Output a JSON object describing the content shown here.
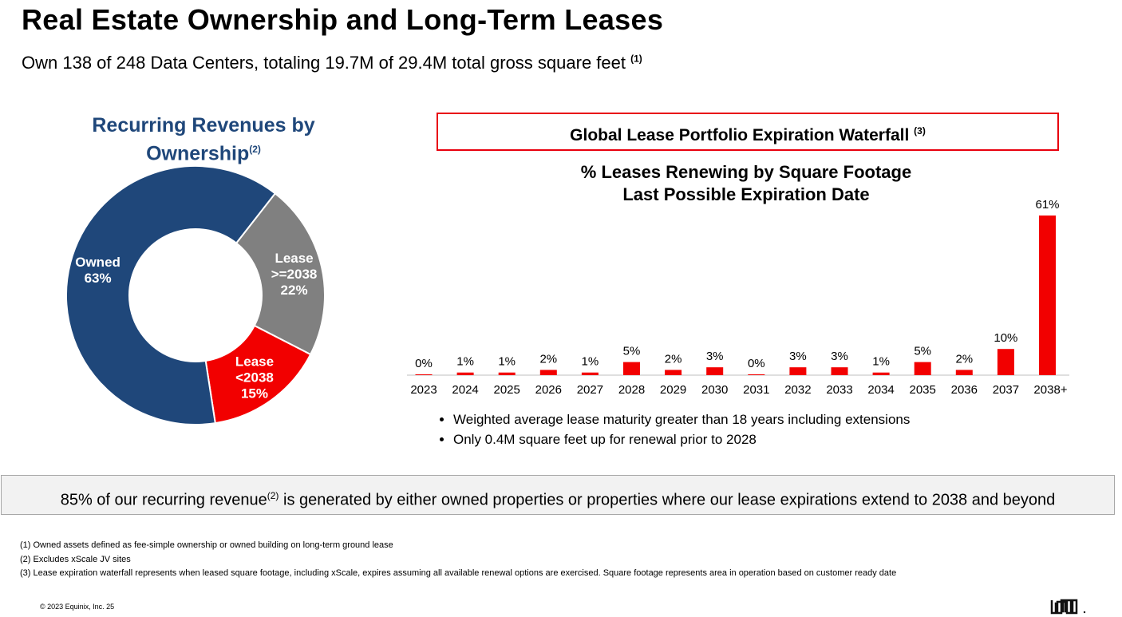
{
  "title": "Real Estate Ownership and Long-Term Leases",
  "subtitle": "Own 138 of 248 Data Centers, totaling 19.7M of 29.4M total gross square feet",
  "subtitle_note": "(1)",
  "chart_data": [
    {
      "type": "pie",
      "title": "Recurring Revenues by Ownership",
      "title_note": "(2)",
      "slices": [
        {
          "label": "Lease >=2038",
          "lines": [
            "Lease",
            ">=2038",
            "22%"
          ],
          "value": 22,
          "color": "#808080"
        },
        {
          "label": "Lease <2038",
          "lines": [
            "Lease",
            "<2038",
            "15%"
          ],
          "value": 15,
          "color": "#f20000"
        },
        {
          "label": "Owned",
          "lines": [
            "Owned",
            "63%"
          ],
          "value": 63,
          "color": "#1f477a"
        }
      ]
    },
    {
      "type": "bar",
      "header": "Global Lease Portfolio Expiration Waterfall",
      "header_note": "(3)",
      "title": [
        "% Leases Renewing by Square Footage",
        "Last Possible Expiration Date"
      ],
      "categories": [
        "2023",
        "2024",
        "2025",
        "2026",
        "2027",
        "2028",
        "2029",
        "2030",
        "2031",
        "2032",
        "2033",
        "2034",
        "2035",
        "2036",
        "2037",
        "2038+"
      ],
      "values": [
        0,
        1,
        1,
        2,
        1,
        5,
        2,
        3,
        0,
        3,
        3,
        1,
        5,
        2,
        10,
        61
      ],
      "unit": "%",
      "color": "#f20000",
      "ylim": [
        0,
        61
      ]
    }
  ],
  "bullets": [
    "Weighted average lease maturity greater than 18 years including extensions",
    "Only 0.4M square feet up for renewal prior to 2028"
  ],
  "banner": {
    "pre": "85% of our recurring revenue",
    "note": "(2)",
    "post": " is generated by either owned properties or properties where our lease expirations extend to 2038 and beyond"
  },
  "footnotes": [
    "(1)  Owned assets defined as fee-simple ownership or owned building on long-term ground lease",
    "(2)  Excludes xScale JV sites",
    "(3)  Lease expiration waterfall represents when leased square footage, including xScale, expires assuming all available renewal options are exercised.  Square footage represents area in operation based on customer ready date"
  ],
  "copyright": "© 2023 Equinix, Inc.    25",
  "logo": "Equinix"
}
